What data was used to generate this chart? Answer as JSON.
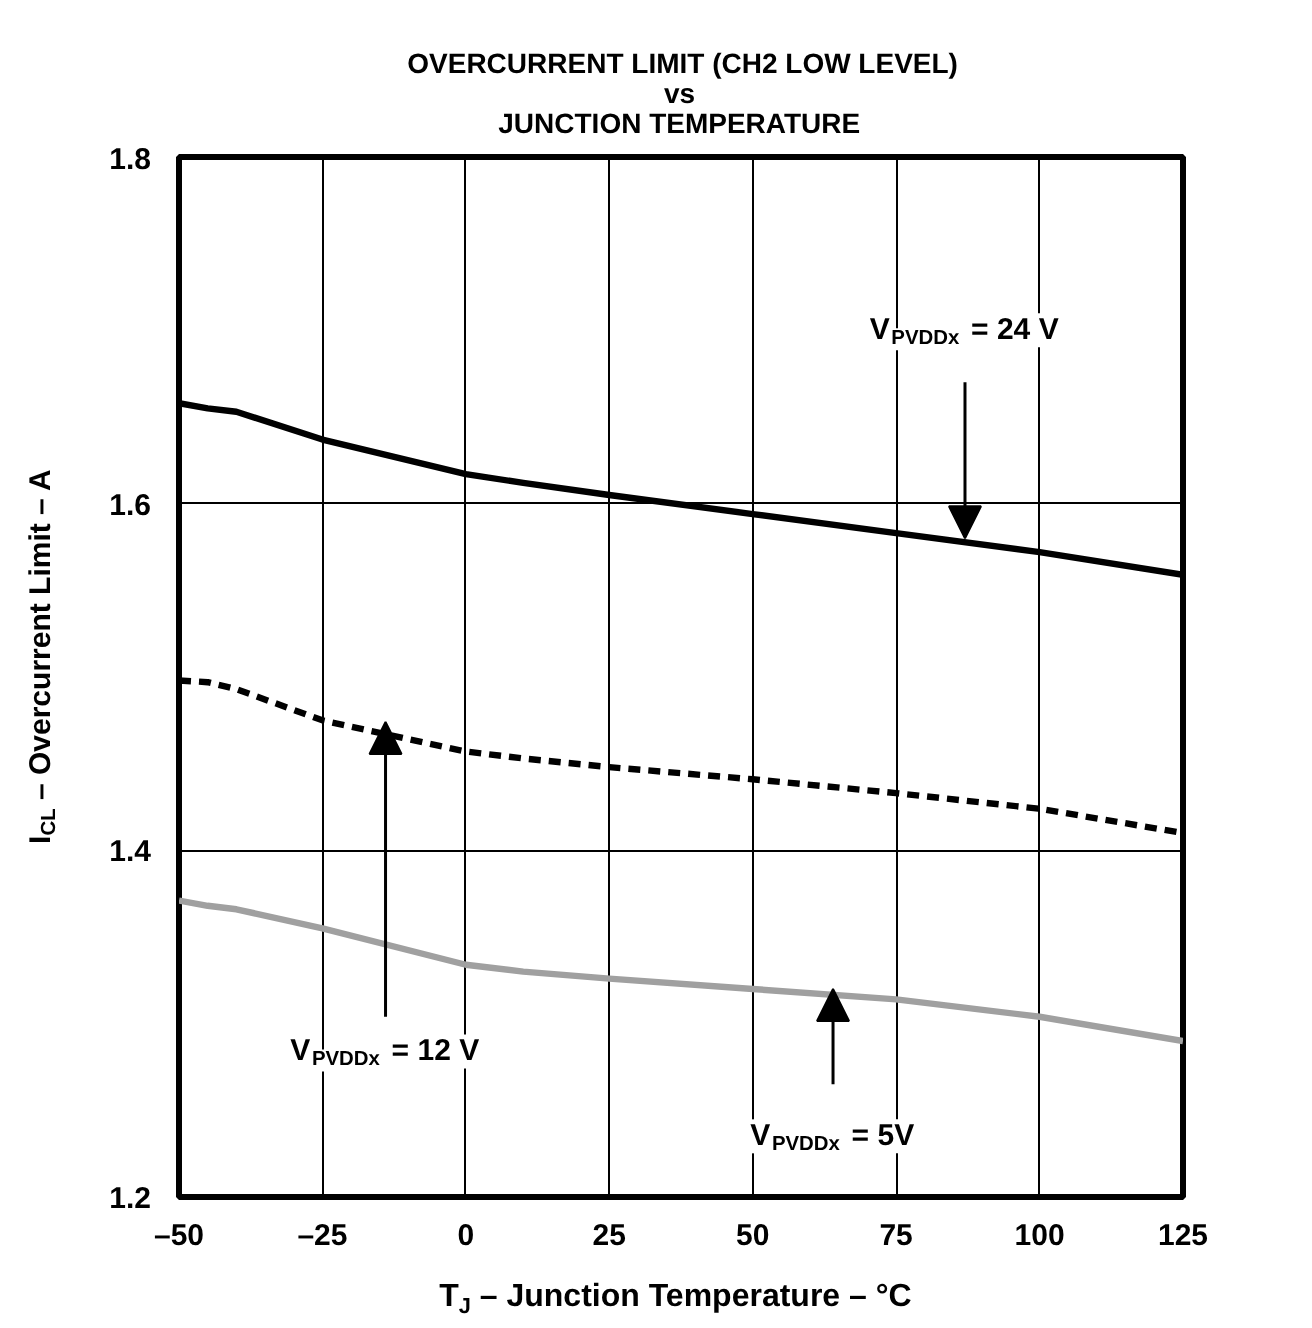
{
  "chart_data": {
    "type": "line",
    "title": "OVERCURRENT LIMIT (CH2 LOW LEVEL)\nvs\nJUNCTION TEMPERATURE",
    "xlabel": "T$_{J}$ – Junction Temperature – °C",
    "ylabel": "I$_{CL}$ – Overcurrent Limit – A",
    "x": [
      -50,
      -45,
      -40,
      -25,
      0,
      10,
      25,
      50,
      75,
      100,
      125
    ],
    "series": [
      {
        "color": "#000000",
        "line_style": "solid",
        "values": [
          1.658,
          1.655,
          1.653,
          1.637,
          1.617,
          1.612,
          1.605,
          1.594,
          1.583,
          1.572,
          1.559
        ]
      },
      {
        "color": "#000000",
        "line_style": "dashed",
        "values": [
          1.498,
          1.497,
          1.493,
          1.475,
          1.457,
          1.453,
          1.448,
          1.441,
          1.433,
          1.424,
          1.41
        ]
      },
      {
        "color": "#a0a0a0",
        "line_style": "solid",
        "values": [
          1.371,
          1.368,
          1.366,
          1.355,
          1.334,
          1.33,
          1.326,
          1.32,
          1.314,
          1.304,
          1.29
        ]
      }
    ],
    "annotations": [
      {
        "text": "V$_{PVDDx}$ = 24 V",
        "x": 87,
        "y": 1.58
      },
      {
        "text": "V$_{PVDDx}$ = 12 V",
        "x": -14,
        "y": 1.474
      },
      {
        "text": "V$_{PVDDx}$ = 5V",
        "x": 64,
        "y": 1.32
      }
    ],
    "xlim": [
      -50,
      125
    ],
    "ylim": [
      1.2,
      1.8
    ],
    "xticks": [
      {
        "value": -50,
        "label": "–50"
      },
      {
        "value": -25,
        "label": "–25"
      },
      0,
      25,
      50,
      75,
      100,
      125
    ],
    "yticks": [
      1.2,
      1.4,
      1.6,
      1.8
    ],
    "grid": true,
    "marker": "none"
  }
}
